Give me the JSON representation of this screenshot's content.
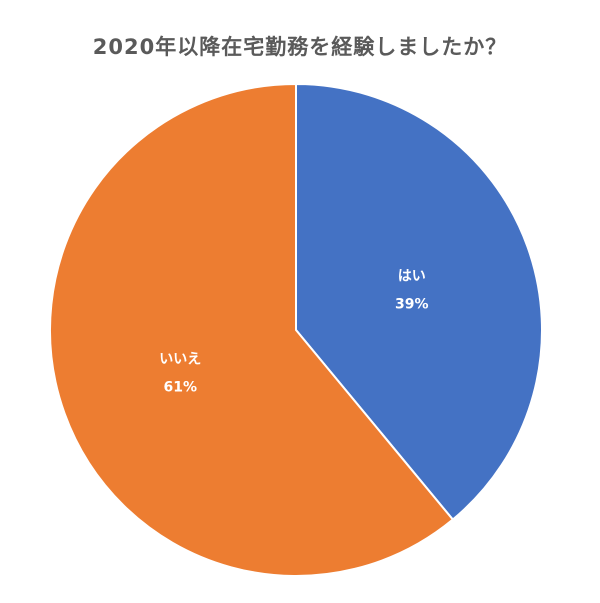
{
  "chart_data": {
    "type": "pie",
    "title": "2020年以降在宅勤務を経験しましたか？",
    "slices": [
      {
        "label": "はい",
        "value": 39,
        "value_label": "39%",
        "color": "#4472C4"
      },
      {
        "label": "いいえ",
        "value": 61,
        "value_label": "61%",
        "color": "#ED7D31"
      }
    ],
    "start_angle": "12 o'clock",
    "direction": "clockwise",
    "legend": "none",
    "data_labels": "inside",
    "slice_border_color": "#ffffff"
  }
}
